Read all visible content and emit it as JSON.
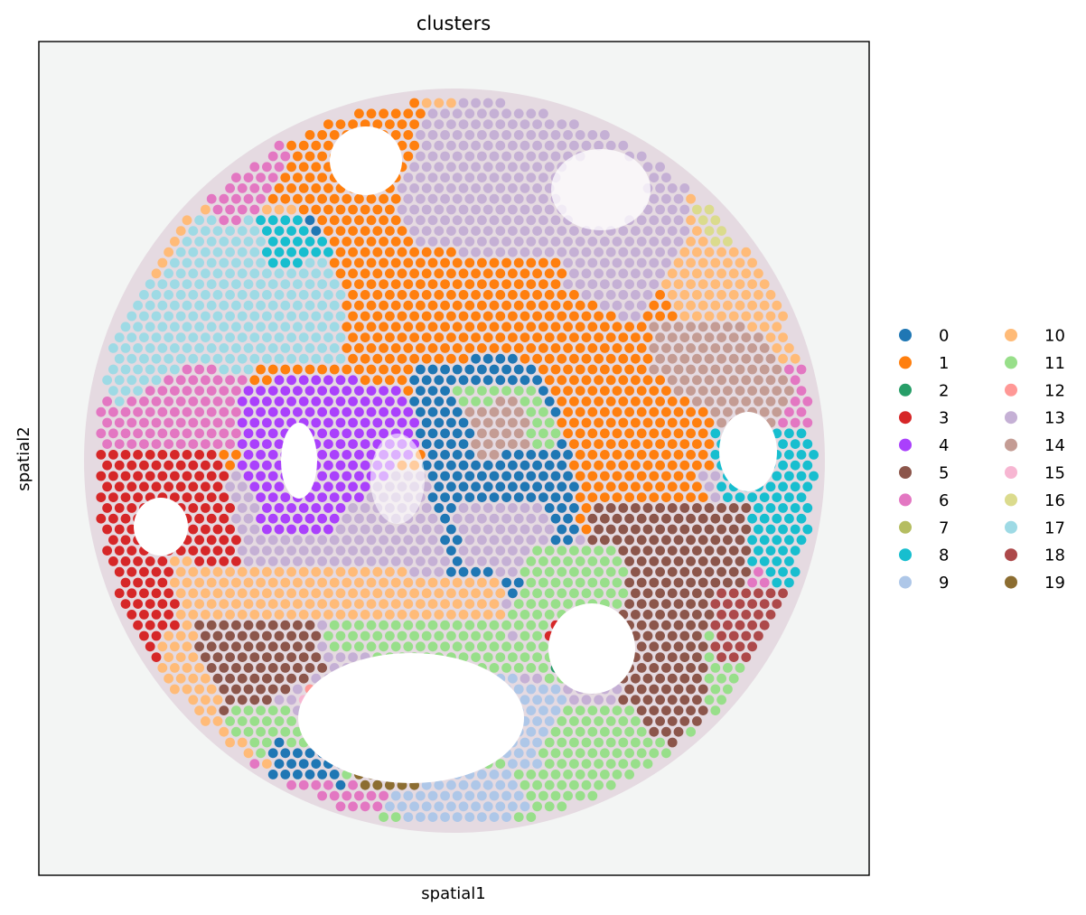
{
  "chart_data": {
    "type": "scatter",
    "title": "clusters",
    "xlabel": "spatial1",
    "ylabel": "spatial2",
    "legend_position": "right",
    "legend_columns": 2,
    "background": "H&E tissue section image",
    "categories": [
      "0",
      "1",
      "2",
      "3",
      "4",
      "5",
      "6",
      "7",
      "8",
      "9",
      "10",
      "11",
      "12",
      "13",
      "14",
      "15",
      "16",
      "17",
      "18",
      "19"
    ],
    "colors": [
      "#1f77b4",
      "#ff7f0e",
      "#279e68",
      "#d62728",
      "#aa40fc",
      "#8c564b",
      "#e377c2",
      "#b5bd61",
      "#17becf",
      "#aec7e8",
      "#ffbb78",
      "#98df8a",
      "#ff9896",
      "#c5b0d5",
      "#c49c94",
      "#f7b6d2",
      "#dbdb8d",
      "#9edae5",
      "#ad494a",
      "#8c6d31"
    ]
  }
}
